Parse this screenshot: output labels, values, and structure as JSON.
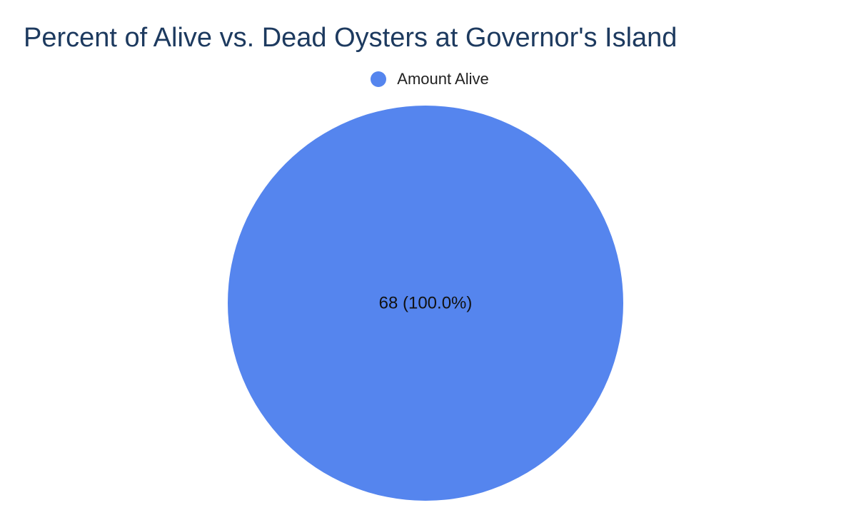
{
  "chart_data": {
    "type": "pie",
    "title": "Percent of Alive vs. Dead Oysters at Governor's Island",
    "legend_position": "top",
    "slices": [
      {
        "name": "Amount Alive",
        "value": 68,
        "label": "68 (100.0%)",
        "color": "#5585ee"
      }
    ]
  }
}
